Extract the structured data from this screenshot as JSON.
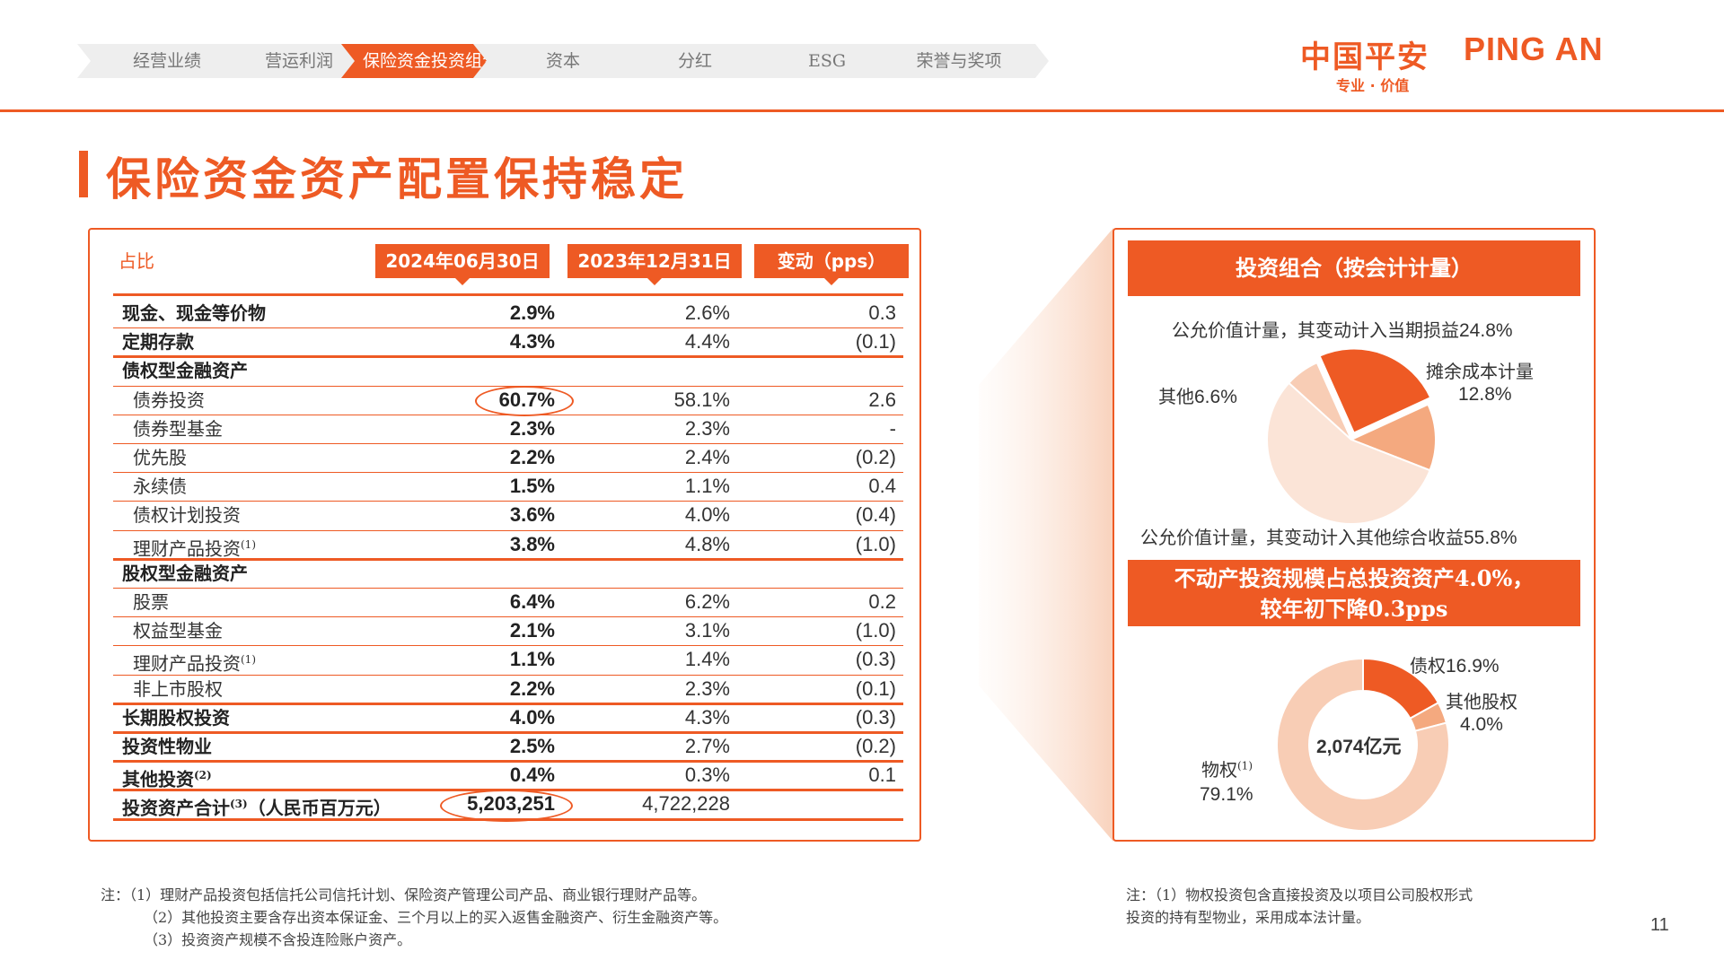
{
  "nav": {
    "items": [
      {
        "label": "经营业绩",
        "active": false
      },
      {
        "label": "营运利润",
        "active": false
      },
      {
        "label": "保险资金投资组合",
        "active": true
      },
      {
        "label": "资本",
        "active": false
      },
      {
        "label": "分红",
        "active": false
      },
      {
        "label": "ESG",
        "active": false
      },
      {
        "label": "荣誉与奖项",
        "active": false
      }
    ]
  },
  "logo": {
    "cn": "中国平安",
    "en": "PING AN",
    "tagline": "专业 · 价值"
  },
  "title": "保险资金资产配置保持稳定",
  "colors": {
    "accent": "#ee5a24",
    "light1": "#f4a97f",
    "light2": "#f8cdb5",
    "light3": "#fbe4d7"
  },
  "table": {
    "label": "占比",
    "headers": [
      "2024年06月30日",
      "2023年12月31日",
      "变动（pps）"
    ],
    "rows": [
      {
        "label": "现金、现金等价物",
        "bold": true,
        "sub": false,
        "v1": "2.9%",
        "v2": "2.6%",
        "v3": "0.3"
      },
      {
        "label": "定期存款",
        "bold": true,
        "sub": false,
        "v1": "4.3%",
        "v2": "4.4%",
        "v3": "(0.1)"
      },
      {
        "label": "债权型金融资产",
        "bold": true,
        "sub": false,
        "v1": "",
        "v2": "",
        "v3": ""
      },
      {
        "label": "债券投资",
        "bold": false,
        "sub": true,
        "v1": "60.7%",
        "v2": "58.1%",
        "v3": "2.6"
      },
      {
        "label": "债券型基金",
        "bold": false,
        "sub": true,
        "v1": "2.3%",
        "v2": "2.3%",
        "v3": "-"
      },
      {
        "label": "优先股",
        "bold": false,
        "sub": true,
        "v1": "2.2%",
        "v2": "2.4%",
        "v3": "(0.2)"
      },
      {
        "label": "永续债",
        "bold": false,
        "sub": true,
        "v1": "1.5%",
        "v2": "1.1%",
        "v3": "0.4"
      },
      {
        "label": "债权计划投资",
        "bold": false,
        "sub": true,
        "v1": "3.6%",
        "v2": "4.0%",
        "v3": "(0.4)"
      },
      {
        "label": "理财产品投资",
        "sup": "(1)",
        "bold": false,
        "sub": true,
        "v1": "3.8%",
        "v2": "4.8%",
        "v3": "(1.0)"
      },
      {
        "label": "股权型金融资产",
        "bold": true,
        "sub": false,
        "v1": "",
        "v2": "",
        "v3": ""
      },
      {
        "label": "股票",
        "bold": false,
        "sub": true,
        "v1": "6.4%",
        "v2": "6.2%",
        "v3": "0.2"
      },
      {
        "label": "权益型基金",
        "bold": false,
        "sub": true,
        "v1": "2.1%",
        "v2": "3.1%",
        "v3": "(1.0)"
      },
      {
        "label": "理财产品投资",
        "sup": "(1)",
        "bold": false,
        "sub": true,
        "v1": "1.1%",
        "v2": "1.4%",
        "v3": "(0.3)"
      },
      {
        "label": "非上市股权",
        "bold": false,
        "sub": true,
        "v1": "2.2%",
        "v2": "2.3%",
        "v3": "(0.1)"
      },
      {
        "label": "长期股权投资",
        "bold": true,
        "sub": false,
        "v1": "4.0%",
        "v2": "4.3%",
        "v3": "(0.3)"
      },
      {
        "label": "投资性物业",
        "bold": true,
        "sub": false,
        "v1": "2.5%",
        "v2": "2.7%",
        "v3": "(0.2)"
      },
      {
        "label": "其他投资",
        "sup": "(2)",
        "bold": true,
        "sub": false,
        "v1": "0.4%",
        "v2": "0.3%",
        "v3": "0.1"
      },
      {
        "label": "投资资产合计",
        "sup": "(3)",
        "suffix": "（人民币百万元）",
        "bold": true,
        "sub": false,
        "v1": "5,203,251",
        "v2": "4,722,228",
        "v3": ""
      }
    ]
  },
  "portfolio": {
    "title": "投资组合（按会计计量）",
    "chart_data": {
      "type": "pie",
      "slices": [
        {
          "name": "公允价值计量，其变动计入当期损益",
          "value": 24.8,
          "label": "24.8%"
        },
        {
          "name": "摊余成本计量",
          "value": 12.8,
          "label": "12.8%"
        },
        {
          "name": "公允价值计量，其变动计入其他综合收益",
          "value": 55.8,
          "label": "55.8%"
        },
        {
          "name": "其他",
          "value": 6.6,
          "label": "6.6%"
        }
      ]
    }
  },
  "realestate": {
    "title_line1": "不动产投资规模占总投资资产4.0%，",
    "title_line2": "较年初下降0.3pps",
    "center_label": "2,074亿元",
    "chart_data": {
      "type": "pie",
      "donut": true,
      "slices": [
        {
          "name": "债权",
          "value": 16.9,
          "label": "16.9%"
        },
        {
          "name": "其他股权",
          "value": 4.0,
          "label": "4.0%"
        },
        {
          "name": "物权",
          "sup": "(1)",
          "value": 79.1,
          "label": "79.1%"
        }
      ]
    }
  },
  "notes": {
    "left": [
      "注：（1）理财产品投资包括信托公司信托计划、保险资产管理公司产品、商业银行理财产品等。",
      "（2）其他投资主要含存出资本保证金、三个月以上的买入返售金融资产、衍生金融资产等。",
      "（3）投资资产规模不含投连险账户资产。"
    ],
    "right": [
      "注：（1）物权投资包含直接投资及以项目公司股权形式",
      "投资的持有型物业，采用成本法计量。"
    ]
  },
  "page_number": "11"
}
